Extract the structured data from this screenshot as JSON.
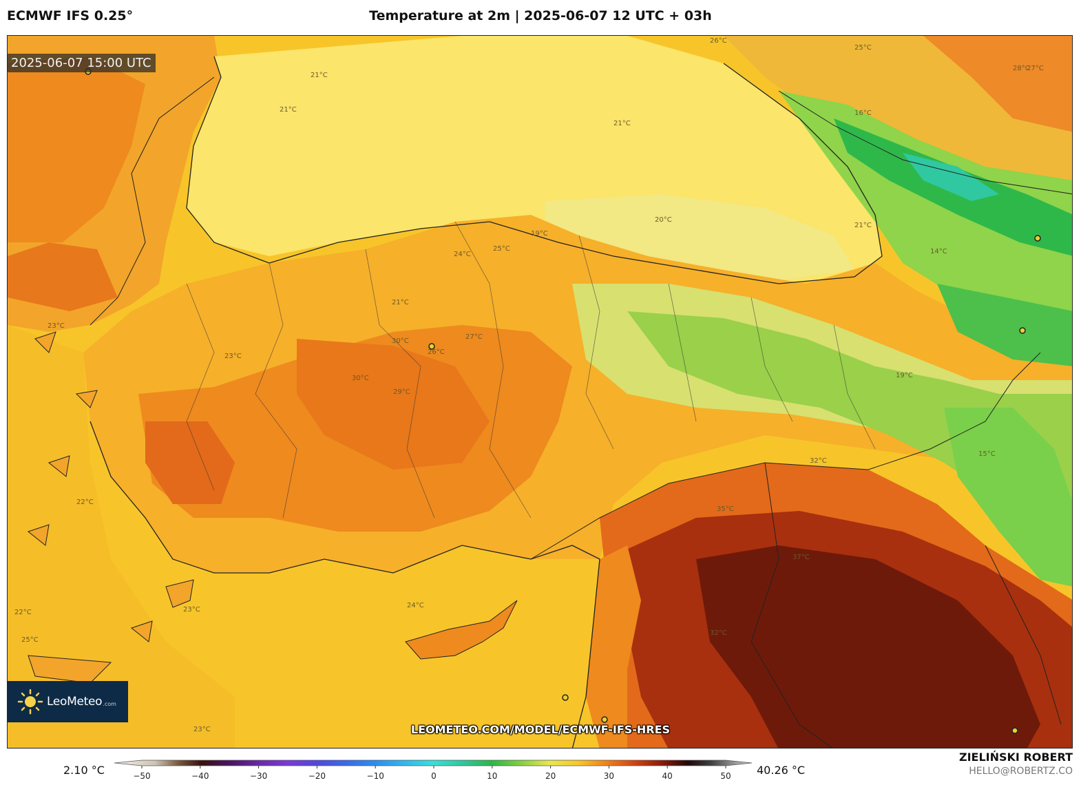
{
  "header": {
    "model": "ECMWF IFS 0.25°",
    "title": "Temperature at 2m | 2025-06-07 12 UTC + 03h"
  },
  "map": {
    "valid_time": "2025-06-07 15:00 UTC",
    "logo_text": "LeoMeteo",
    "logo_suffix": ".com",
    "url": "LEOMETEO.COM/MODEL/ECMWF-IFS-HRES",
    "isotherm_labels": [
      "21°C",
      "21°C",
      "21°C",
      "20°C",
      "21°C",
      "19°C",
      "25°C",
      "24°C",
      "26°C",
      "30°C",
      "30°C",
      "29°C",
      "27°C",
      "21°C",
      "23°C",
      "23°C",
      "22°C",
      "32°C",
      "35°C",
      "37°C",
      "32°C",
      "16°C",
      "15°C",
      "14°C",
      "19°C",
      "27°C",
      "28°C",
      "25°C",
      "26°C",
      "24°C",
      "22°C",
      "25°C",
      "23°C",
      "23°C"
    ],
    "colors": {
      "sea": "#f7c52a",
      "black_sea": "#fbe56a",
      "warm_land": "#f0a020",
      "hot_land": "#e8701a",
      "very_hot": "#a8300e",
      "extreme": "#6e1a0a",
      "cool_green": "#8fd44a",
      "cold_green": "#2fb84a"
    }
  },
  "colorbar": {
    "min_label": "2.10 °C",
    "max_label": "40.26 °C",
    "ticks": [
      "−50",
      "−40",
      "−30",
      "−20",
      "−10",
      "0",
      "10",
      "20",
      "30",
      "40",
      "50"
    ],
    "tick_values": [
      -50,
      -40,
      -30,
      -20,
      -10,
      0,
      10,
      20,
      30,
      40,
      50
    ],
    "range": [
      -55,
      55
    ],
    "stops": [
      {
        "v": -55,
        "c": "#f4f0e8"
      },
      {
        "v": -48,
        "c": "#cfc4b4"
      },
      {
        "v": -44,
        "c": "#7a5a3e"
      },
      {
        "v": -40,
        "c": "#3a1010"
      },
      {
        "v": -35,
        "c": "#4a1464"
      },
      {
        "v": -30,
        "c": "#6a2aa8"
      },
      {
        "v": -25,
        "c": "#7a3ad8"
      },
      {
        "v": -20,
        "c": "#5048e0"
      },
      {
        "v": -15,
        "c": "#3a6ae8"
      },
      {
        "v": -10,
        "c": "#2a8ef0"
      },
      {
        "v": -5,
        "c": "#30b8f0"
      },
      {
        "v": 0,
        "c": "#38e0d8"
      },
      {
        "v": 5,
        "c": "#30c8a0"
      },
      {
        "v": 10,
        "c": "#2ab848"
      },
      {
        "v": 15,
        "c": "#80d040"
      },
      {
        "v": 20,
        "c": "#e8e850"
      },
      {
        "v": 25,
        "c": "#f8c828"
      },
      {
        "v": 30,
        "c": "#f08018"
      },
      {
        "v": 35,
        "c": "#d04010"
      },
      {
        "v": 40,
        "c": "#801808"
      },
      {
        "v": 44,
        "c": "#200808"
      },
      {
        "v": 48,
        "c": "#404040"
      },
      {
        "v": 55,
        "c": "#d8d8d8"
      }
    ]
  },
  "credits": {
    "author": "ZIELIŃSKI ROBERT",
    "email": "HELLO@ROBERTZ.CO"
  }
}
